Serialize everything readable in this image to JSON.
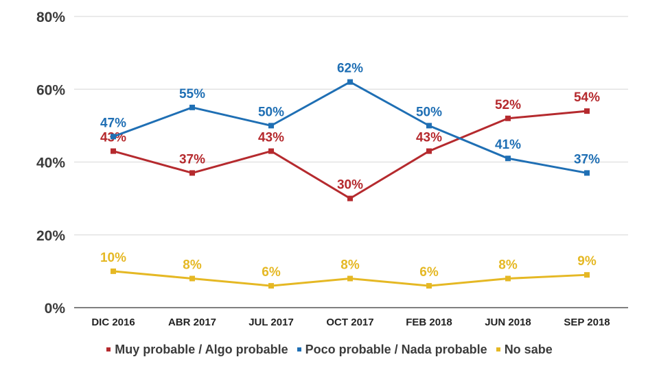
{
  "chart_data": {
    "type": "line",
    "title": "",
    "xlabel": "",
    "ylabel": "",
    "categories": [
      "DIC 2016",
      "ABR 2017",
      "JUL 2017",
      "OCT 2017",
      "FEB 2018",
      "JUN 2018",
      "SEP 2018"
    ],
    "ylim": [
      0,
      80
    ],
    "yticks": [
      0,
      20,
      40,
      60,
      80
    ],
    "ytick_labels": [
      "0%",
      "20%",
      "40%",
      "60%",
      "80%"
    ],
    "grid": true,
    "legend_position": "bottom",
    "series": [
      {
        "name": "Muy probable / Algo probable",
        "color": "#b52a2e",
        "values": [
          43,
          37,
          43,
          30,
          43,
          52,
          54
        ],
        "labels": [
          "43%",
          "37%",
          "43%",
          "30%",
          "43%",
          "52%",
          "54%"
        ]
      },
      {
        "name": "Poco probable / Nada probable",
        "color": "#1f6fb4",
        "values": [
          47,
          55,
          50,
          62,
          50,
          41,
          37
        ],
        "labels": [
          "47%",
          "55%",
          "50%",
          "62%",
          "50%",
          "41%",
          "37%"
        ]
      },
      {
        "name": "No sabe",
        "color": "#e5b824",
        "values": [
          10,
          8,
          6,
          8,
          6,
          8,
          9
        ],
        "labels": [
          "10%",
          "8%",
          "6%",
          "8%",
          "6%",
          "8%",
          "9%"
        ]
      }
    ]
  },
  "legend": {
    "items": [
      {
        "label": "Muy probable / Algo probable",
        "color": "#b52a2e"
      },
      {
        "label": "Poco probable / Nada probable",
        "color": "#1f6fb4"
      },
      {
        "label": "No sabe",
        "color": "#e5b824"
      }
    ]
  }
}
